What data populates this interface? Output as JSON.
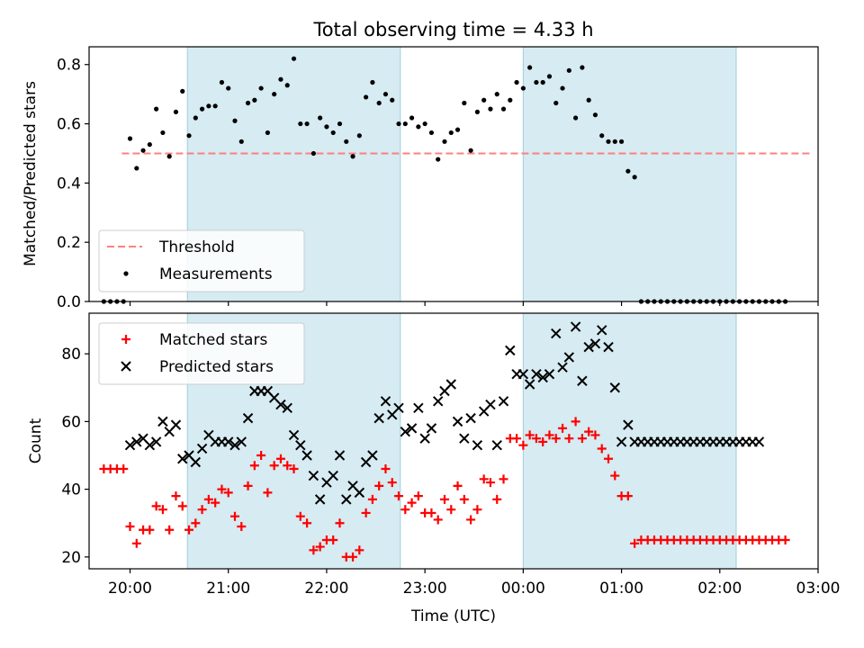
{
  "chart_data": [
    {
      "type": "scatter",
      "title": "Total observing time = 4.33 h",
      "ylabel": "Matched/Predicted stars",
      "xlabel": "",
      "xlim": [
        "19:35",
        "03:00"
      ],
      "ylim": [
        0,
        0.86
      ],
      "yticks": [
        "0.0",
        "0.2",
        "0.4",
        "0.6",
        "0.8"
      ],
      "shaded_intervals": [
        [
          "20:35",
          "22:45"
        ],
        [
          "00:00",
          "02:10"
        ]
      ],
      "legend_position": "lower-left",
      "series": [
        {
          "name": "Threshold",
          "style": "dashed-line",
          "color": "#ff7f7f",
          "x": [
            "19:55",
            "02:55"
          ],
          "y": [
            0.5,
            0.5
          ]
        },
        {
          "name": "Measurements",
          "style": "dot",
          "color": "#000000",
          "x": [
            "19:44",
            "19:48",
            "19:52",
            "19:56",
            "20:00",
            "20:04",
            "20:08",
            "20:12",
            "20:16",
            "20:20",
            "20:24",
            "20:28",
            "20:32",
            "20:36",
            "20:40",
            "20:44",
            "20:48",
            "20:52",
            "20:56",
            "21:00",
            "21:04",
            "21:08",
            "21:12",
            "21:16",
            "21:20",
            "21:24",
            "21:28",
            "21:32",
            "21:36",
            "21:40",
            "21:44",
            "21:48",
            "21:52",
            "21:56",
            "22:00",
            "22:04",
            "22:08",
            "22:12",
            "22:16",
            "22:20",
            "22:24",
            "22:28",
            "22:32",
            "22:36",
            "22:40",
            "22:44",
            "22:48",
            "22:52",
            "22:56",
            "23:00",
            "23:04",
            "23:08",
            "23:12",
            "23:16",
            "23:20",
            "23:24",
            "23:28",
            "23:32",
            "23:36",
            "23:40",
            "23:44",
            "23:48",
            "23:52",
            "23:56",
            "00:00",
            "00:04",
            "00:08",
            "00:12",
            "00:16",
            "00:20",
            "00:24",
            "00:28",
            "00:32",
            "00:36",
            "00:40",
            "00:44",
            "00:48",
            "00:52",
            "00:56",
            "01:00",
            "01:04",
            "01:08",
            "01:12",
            "01:16",
            "01:20",
            "01:24",
            "01:28",
            "01:32",
            "01:36",
            "01:40",
            "01:44",
            "01:48",
            "01:52",
            "01:56",
            "02:00",
            "02:04",
            "02:08",
            "02:12",
            "02:16",
            "02:20",
            "02:24",
            "02:28",
            "02:32",
            "02:36",
            "02:40"
          ],
          "y": [
            0,
            0,
            0,
            0,
            0.55,
            0.45,
            0.51,
            0.53,
            0.65,
            0.57,
            0.49,
            0.64,
            0.71,
            0.56,
            0.62,
            0.65,
            0.66,
            0.66,
            0.74,
            0.72,
            0.61,
            0.54,
            0.67,
            0.68,
            0.72,
            0.57,
            0.7,
            0.75,
            0.73,
            0.82,
            0.6,
            0.6,
            0.5,
            0.62,
            0.59,
            0.57,
            0.6,
            0.54,
            0.49,
            0.56,
            0.69,
            0.74,
            0.67,
            0.7,
            0.68,
            0.6,
            0.6,
            0.62,
            0.59,
            0.6,
            0.57,
            0.48,
            0.54,
            0.57,
            0.58,
            0.67,
            0.51,
            0.64,
            0.68,
            0.65,
            0.7,
            0.65,
            0.68,
            0.74,
            0.72,
            0.79,
            0.74,
            0.74,
            0.76,
            0.67,
            0.72,
            0.78,
            0.62,
            0.79,
            0.68,
            0.63,
            0.56,
            0.54,
            0.54,
            0.54,
            0.44,
            0.42,
            0,
            0,
            0,
            0,
            0,
            0,
            0,
            0,
            0,
            0,
            0,
            0,
            0,
            0,
            0,
            0,
            0,
            0,
            0,
            0,
            0,
            0,
            0
          ]
        }
      ]
    },
    {
      "type": "scatter",
      "title": "",
      "ylabel": "Count",
      "xlabel": "Time (UTC)",
      "xlim": [
        "19:35",
        "03:00"
      ],
      "ylim": [
        16.5,
        92
      ],
      "yticks": [
        "20",
        "40",
        "60",
        "80"
      ],
      "xticks": [
        "20:00",
        "21:00",
        "22:00",
        "23:00",
        "00:00",
        "01:00",
        "02:00",
        "03:00"
      ],
      "shaded_intervals": [
        [
          "20:35",
          "22:45"
        ],
        [
          "00:00",
          "02:10"
        ]
      ],
      "legend_position": "upper-left",
      "series": [
        {
          "name": "Matched stars",
          "style": "plus",
          "color": "#ff0000",
          "x": [
            "19:44",
            "19:48",
            "19:52",
            "19:56",
            "20:00",
            "20:04",
            "20:08",
            "20:12",
            "20:16",
            "20:20",
            "20:24",
            "20:28",
            "20:32",
            "20:36",
            "20:40",
            "20:44",
            "20:48",
            "20:52",
            "20:56",
            "21:00",
            "21:04",
            "21:08",
            "21:12",
            "21:16",
            "21:20",
            "21:24",
            "21:28",
            "21:32",
            "21:36",
            "21:40",
            "21:44",
            "21:48",
            "21:52",
            "21:56",
            "22:00",
            "22:04",
            "22:08",
            "22:12",
            "22:16",
            "22:20",
            "22:24",
            "22:28",
            "22:32",
            "22:36",
            "22:40",
            "22:44",
            "22:48",
            "22:52",
            "22:56",
            "23:00",
            "23:04",
            "23:08",
            "23:12",
            "23:16",
            "23:20",
            "23:24",
            "23:28",
            "23:32",
            "23:36",
            "23:40",
            "23:44",
            "23:48",
            "23:52",
            "23:56",
            "00:00",
            "00:04",
            "00:08",
            "00:12",
            "00:16",
            "00:20",
            "00:24",
            "00:28",
            "00:32",
            "00:36",
            "00:40",
            "00:44",
            "00:48",
            "00:52",
            "00:56",
            "01:00",
            "01:04",
            "01:08",
            "01:12",
            "01:16",
            "01:20",
            "01:24",
            "01:28",
            "01:32",
            "01:36",
            "01:40",
            "01:44",
            "01:48",
            "01:52",
            "01:56",
            "02:00",
            "02:04",
            "02:08",
            "02:12",
            "02:16",
            "02:20",
            "02:24",
            "02:28",
            "02:32",
            "02:36",
            "02:40"
          ],
          "y": [
            46,
            46,
            46,
            46,
            29,
            24,
            28,
            28,
            35,
            34,
            28,
            38,
            35,
            28,
            30,
            34,
            37,
            36,
            40,
            39,
            32,
            29,
            41,
            47,
            50,
            39,
            47,
            49,
            47,
            46,
            32,
            30,
            22,
            23,
            25,
            25,
            30,
            20,
            20,
            22,
            33,
            37,
            41,
            46,
            42,
            38,
            34,
            36,
            38,
            33,
            33,
            31,
            37,
            34,
            41,
            37,
            31,
            34,
            43,
            42,
            37,
            43,
            55,
            55,
            53,
            56,
            55,
            54,
            56,
            55,
            58,
            55,
            60,
            55,
            57,
            56,
            52,
            49,
            44,
            38,
            38,
            24,
            25,
            25,
            25,
            25,
            25,
            25,
            25,
            25,
            25,
            25,
            25,
            25,
            25,
            25,
            25,
            25,
            25,
            25,
            25,
            25,
            25,
            25,
            25
          ]
        },
        {
          "name": "Predicted stars",
          "style": "x",
          "color": "#000000",
          "x": [
            "20:00",
            "20:04",
            "20:08",
            "20:12",
            "20:16",
            "20:20",
            "20:24",
            "20:28",
            "20:32",
            "20:36",
            "20:40",
            "20:44",
            "20:48",
            "20:52",
            "20:56",
            "21:00",
            "21:04",
            "21:08",
            "21:12",
            "21:16",
            "21:20",
            "21:24",
            "21:28",
            "21:32",
            "21:36",
            "21:40",
            "21:44",
            "21:48",
            "21:52",
            "21:56",
            "22:00",
            "22:04",
            "22:08",
            "22:12",
            "22:16",
            "22:20",
            "22:24",
            "22:28",
            "22:32",
            "22:36",
            "22:40",
            "22:44",
            "22:48",
            "22:52",
            "22:56",
            "23:00",
            "23:04",
            "23:08",
            "23:12",
            "23:16",
            "23:20",
            "23:24",
            "23:28",
            "23:32",
            "23:36",
            "23:40",
            "23:44",
            "23:48",
            "23:52",
            "23:56",
            "00:00",
            "00:04",
            "00:08",
            "00:12",
            "00:16",
            "00:20",
            "00:24",
            "00:28",
            "00:32",
            "00:36",
            "00:40",
            "00:44",
            "00:48",
            "00:52",
            "00:56",
            "01:00",
            "01:04",
            "01:08",
            "01:12",
            "01:16",
            "01:20",
            "01:24",
            "01:28",
            "01:32",
            "01:36",
            "01:40",
            "01:44",
            "01:48",
            "01:52",
            "01:56",
            "02:00",
            "02:04",
            "02:08",
            "02:12",
            "02:16",
            "02:20",
            "02:24"
          ],
          "y": [
            53,
            54,
            55,
            53,
            54,
            60,
            57,
            59,
            49,
            50,
            48,
            52,
            56,
            54,
            54,
            54,
            53,
            54,
            61,
            69,
            69,
            69,
            67,
            65,
            64,
            56,
            53,
            50,
            44,
            37,
            42,
            44,
            50,
            37,
            41,
            39,
            48,
            50,
            61,
            66,
            62,
            64,
            57,
            58,
            64,
            55,
            58,
            66,
            69,
            71,
            60,
            55,
            61,
            53,
            63,
            65,
            53,
            66,
            81,
            74,
            74,
            71,
            74,
            73,
            74,
            86,
            76,
            79,
            88,
            72,
            82,
            83,
            87,
            82,
            70,
            54,
            59,
            54,
            54,
            54,
            54,
            54,
            54,
            54,
            54,
            54,
            54,
            54,
            54,
            54,
            54,
            54,
            54,
            54,
            54,
            54,
            54
          ]
        }
      ]
    }
  ]
}
